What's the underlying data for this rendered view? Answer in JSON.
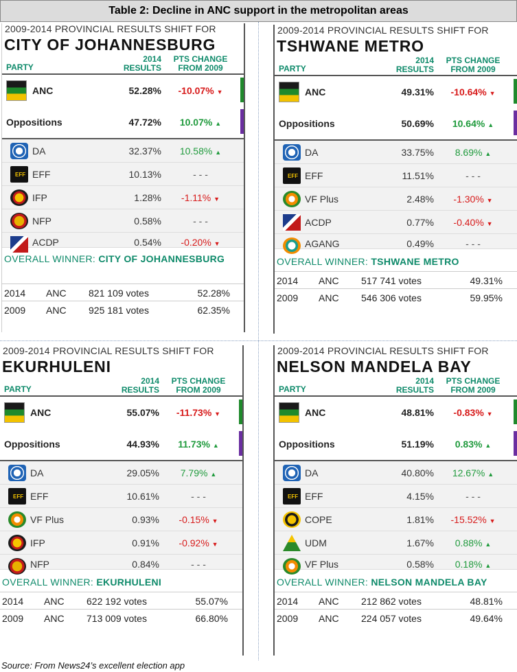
{
  "title": "Table 2: Decline in ANC support in the metropolitan areas",
  "source": "Source: From News24’s excellent election app",
  "header_labels": {
    "party": "PARTY",
    "results_line1": "2014",
    "results_line2": "RESULTS",
    "change_line1": "PTS CHANGE",
    "change_line2": "FROM 2009",
    "overall_winner": "OVERALL WINNER:"
  },
  "colors": {
    "positive": "#1f9a3c",
    "negative": "#d71a1a",
    "accent": "#0e8a6a",
    "anc_bar": "#1f8a2c",
    "opp_bar": "#6a2ea0"
  },
  "panels": [
    {
      "subtitle": "2009-2014 PROVINCIAL RESULTS SHIFT FOR",
      "city": "CITY OF JOHANNESBURG",
      "anc": {
        "name": "ANC",
        "result": "52.28%",
        "change": "-10.07%"
      },
      "opp": {
        "name": "Oppositions",
        "result": "47.72%",
        "change": "10.07%"
      },
      "parties": [
        {
          "name": "DA",
          "logo": "da-logo",
          "result": "32.37%",
          "change": "10.58%",
          "dir": "up"
        },
        {
          "name": "EFF",
          "logo": "eff-logo",
          "result": "10.13%",
          "change": "- - -",
          "dir": "none"
        },
        {
          "name": "IFP",
          "logo": "ifp-logo",
          "result": "1.28%",
          "change": "-1.11%",
          "dir": "down"
        },
        {
          "name": "NFP",
          "logo": "nfp-logo",
          "result": "0.58%",
          "change": "- - -",
          "dir": "none"
        },
        {
          "name": "ACDP",
          "logo": "acdp-logo",
          "result": "0.54%",
          "change": "-0.20%",
          "dir": "down"
        }
      ],
      "winner": "CITY OF JOHANNESBURG",
      "votes": [
        {
          "year": "2014",
          "party": "ANC",
          "votes": "821 109 votes",
          "pct": "52.28%"
        },
        {
          "year": "2009",
          "party": "ANC",
          "votes": "925 181 votes",
          "pct": "62.35%"
        }
      ]
    },
    {
      "subtitle": "2009-2014 PROVINCIAL RESULTS SHIFT FOR",
      "city": "TSHWANE METRO",
      "anc": {
        "name": "ANC",
        "result": "49.31%",
        "change": "-10.64%"
      },
      "opp": {
        "name": "Oppositions",
        "result": "50.69%",
        "change": "10.64%"
      },
      "parties": [
        {
          "name": "DA",
          "logo": "da-logo",
          "result": "33.75%",
          "change": "8.69%",
          "dir": "up"
        },
        {
          "name": "EFF",
          "logo": "eff-logo",
          "result": "11.51%",
          "change": "- - -",
          "dir": "none"
        },
        {
          "name": "VF Plus",
          "logo": "vf-plus-logo",
          "result": "2.48%",
          "change": "-1.30%",
          "dir": "down"
        },
        {
          "name": "ACDP",
          "logo": "acdp-logo",
          "result": "0.77%",
          "change": "-0.40%",
          "dir": "down"
        },
        {
          "name": "AGANG",
          "logo": "agang-logo",
          "result": "0.49%",
          "change": "- - -",
          "dir": "none"
        }
      ],
      "winner": "TSHWANE METRO",
      "votes": [
        {
          "year": "2014",
          "party": "ANC",
          "votes": "517 741 votes",
          "pct": "49.31%"
        },
        {
          "year": "2009",
          "party": "ANC",
          "votes": "546 306 votes",
          "pct": "59.95%"
        }
      ]
    },
    {
      "subtitle": "2009-2014 PROVINCIAL RESULTS SHIFT FOR",
      "city": "EKURHULENI",
      "anc": {
        "name": "ANC",
        "result": "55.07%",
        "change": "-11.73%"
      },
      "opp": {
        "name": "Oppositions",
        "result": "44.93%",
        "change": "11.73%"
      },
      "parties": [
        {
          "name": "DA",
          "logo": "da-logo",
          "result": "29.05%",
          "change": "7.79%",
          "dir": "up"
        },
        {
          "name": "EFF",
          "logo": "eff-logo",
          "result": "10.61%",
          "change": "- - -",
          "dir": "none"
        },
        {
          "name": "VF Plus",
          "logo": "vf-plus-logo",
          "result": "0.93%",
          "change": "-0.15%",
          "dir": "down"
        },
        {
          "name": "IFP",
          "logo": "ifp-logo",
          "result": "0.91%",
          "change": "-0.92%",
          "dir": "down"
        },
        {
          "name": "NFP",
          "logo": "nfp-logo",
          "result": "0.84%",
          "change": "- - -",
          "dir": "none"
        }
      ],
      "winner": "EKURHULENI",
      "votes": [
        {
          "year": "2014",
          "party": "ANC",
          "votes": "622 192 votes",
          "pct": "55.07%"
        },
        {
          "year": "2009",
          "party": "ANC",
          "votes": "713 009 votes",
          "pct": "66.80%"
        }
      ]
    },
    {
      "subtitle": "2009-2014 PROVINCIAL RESULTS SHIFT FOR",
      "city": "NELSON MANDELA BAY",
      "anc": {
        "name": "ANC",
        "result": "48.81%",
        "change": "-0.83%"
      },
      "opp": {
        "name": "Oppositions",
        "result": "51.19%",
        "change": "0.83%"
      },
      "parties": [
        {
          "name": "DA",
          "logo": "da-logo",
          "result": "40.80%",
          "change": "12.67%",
          "dir": "up"
        },
        {
          "name": "EFF",
          "logo": "eff-logo",
          "result": "4.15%",
          "change": "- - -",
          "dir": "none"
        },
        {
          "name": "COPE",
          "logo": "cope-logo",
          "result": "1.81%",
          "change": "-15.52%",
          "dir": "down"
        },
        {
          "name": "UDM",
          "logo": "udm-logo",
          "result": "1.67%",
          "change": "0.88%",
          "dir": "up"
        },
        {
          "name": "VF Plus",
          "logo": "vf-plus-logo",
          "result": "0.58%",
          "change": "0.18%",
          "dir": "up"
        }
      ],
      "winner": "NELSON MANDELA BAY",
      "votes": [
        {
          "year": "2014",
          "party": "ANC",
          "votes": "212 862 votes",
          "pct": "48.81%"
        },
        {
          "year": "2009",
          "party": "ANC",
          "votes": "224 057 votes",
          "pct": "49.64%"
        }
      ]
    }
  ]
}
